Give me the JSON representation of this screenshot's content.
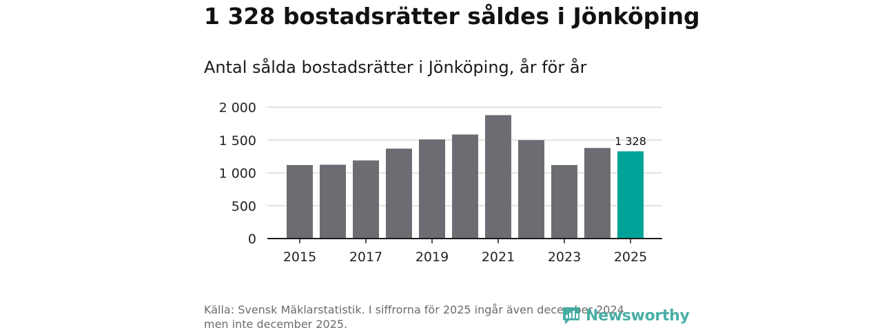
{
  "headline": "1 328 bostadsrätter såldes i Jönköping",
  "chart_data": {
    "type": "bar",
    "title": "Antal sålda bostadsrätter i Jönköping, år för år",
    "categories": [
      "2015",
      "2016",
      "2017",
      "2018",
      "2019",
      "2020",
      "2021",
      "2022",
      "2023",
      "2024",
      "2025"
    ],
    "values": [
      1120,
      1125,
      1190,
      1370,
      1510,
      1585,
      1880,
      1500,
      1120,
      1380,
      1328
    ],
    "x_tick_labels": [
      "2015",
      "2017",
      "2019",
      "2021",
      "2023",
      "2025"
    ],
    "y_ticks": [
      0,
      500,
      1000,
      1500,
      2000
    ],
    "y_tick_labels": [
      "0",
      "500",
      "1 000",
      "1 500",
      "2 000"
    ],
    "ylim": [
      0,
      2000
    ],
    "xlabel": "",
    "ylabel": "",
    "grid": true,
    "highlight_index": 10,
    "highlight_label": "1 328",
    "colors": {
      "bar": "#6d6c72",
      "highlight": "#00a398",
      "grid": "#d9d9d9",
      "axis": "#1a1a1a"
    }
  },
  "footer": {
    "source": "Källa: Svensk Mäklarstatistik. I siffrorna för 2025 ingår även december 2024 men inte december 2025."
  },
  "logo": {
    "text": "Newsworthy",
    "color": "#3aa99f"
  }
}
